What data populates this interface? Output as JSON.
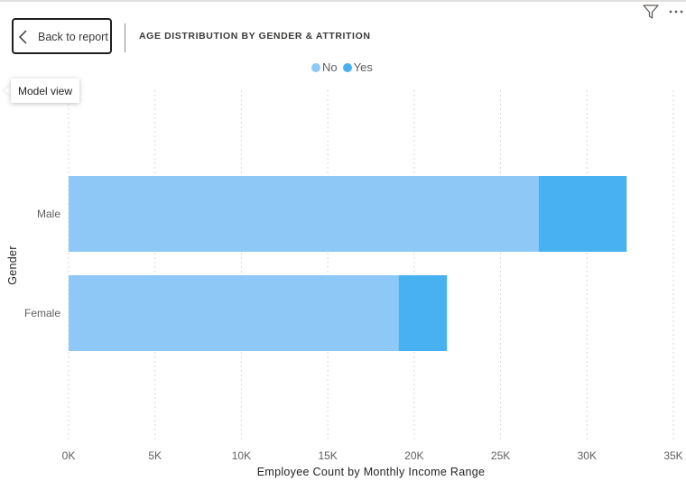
{
  "header": {
    "back_label": "Back to report",
    "title": "AGE DISTRIBUTION BY GENDER & ATTRITION"
  },
  "tooltip": {
    "text": "Model view"
  },
  "icons": {
    "back": "chevron-left-icon",
    "filter": "filter-icon",
    "more": "more-options-icon"
  },
  "legend": [
    {
      "label": "No",
      "color": "#8dc8f6"
    },
    {
      "label": "Yes",
      "color": "#47b1f2"
    }
  ],
  "chart_data": {
    "type": "bar",
    "orientation": "horizontal",
    "stacked": true,
    "categories": [
      "Male",
      "Female"
    ],
    "series": [
      {
        "name": "No",
        "values": [
          27200,
          19100
        ],
        "color": "#8dc8f6"
      },
      {
        "name": "Yes",
        "values": [
          5100,
          2800
        ],
        "color": "#47b1f2"
      }
    ],
    "xlabel": "Employee Count by Monthly Income Range",
    "ylabel": "Gender",
    "xlim": [
      0,
      35000
    ],
    "xticks": [
      0,
      5000,
      10000,
      15000,
      20000,
      25000,
      30000,
      35000
    ],
    "xtick_labels": [
      "0K",
      "5K",
      "10K",
      "15K",
      "20K",
      "25K",
      "30K",
      "35K"
    ],
    "grid": true,
    "legend_position": "top-center"
  }
}
